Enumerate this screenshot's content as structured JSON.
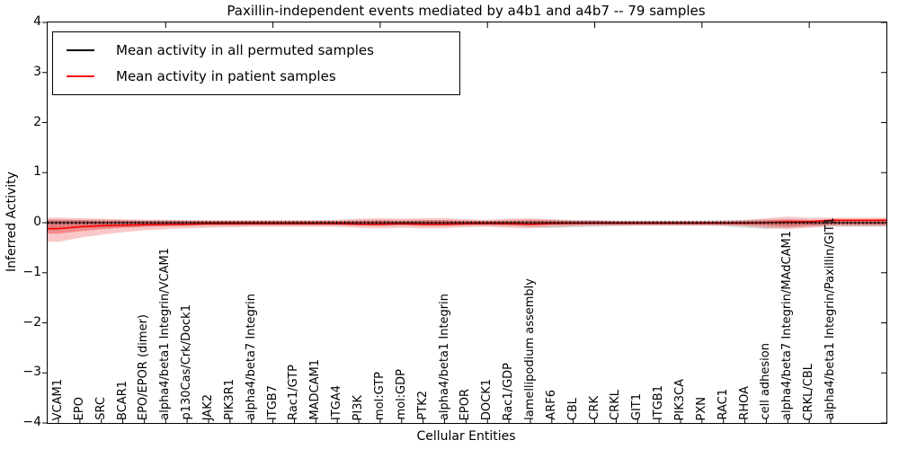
{
  "figure": {
    "title": "Paxillin-independent events mediated by a4b1 and a4b7 -- 79 samples",
    "xlabel": "Cellular Entities",
    "ylabel": "Inferred Activity"
  },
  "legend": {
    "items": [
      {
        "label": "Mean activity in all permuted samples",
        "color": "#000000"
      },
      {
        "label": "Mean activity in patient samples",
        "color": "#ff0000"
      }
    ]
  },
  "axes": {
    "ytick_labels": [
      "4",
      "3",
      "2",
      "1",
      "0",
      "−1",
      "−2",
      "−3",
      "−4"
    ],
    "ytick_values": [
      4,
      3,
      2,
      1,
      0,
      -1,
      -2,
      -3,
      -4
    ]
  },
  "chart_data": {
    "type": "line",
    "title": "Paxillin-independent events mediated by a4b1 and a4b7 -- 79 samples",
    "xlabel": "Cellular Entities",
    "ylabel": "Inferred Activity",
    "ylim": [
      -4,
      4
    ],
    "grid": false,
    "legend_position": "upper left",
    "categories": [
      "VCAM1",
      "EPO",
      "SRC",
      "BCAR1",
      "EPO/EPOR (dimer)",
      "alpha4/beta1 Integrin/VCAM1",
      "p130Cas/Crk/Dock1",
      "JAK2",
      "PIK3R1",
      "alpha4/beta7 Integrin",
      "ITGB7",
      "Rac1/GTP",
      "MADCAM1",
      "ITGA4",
      "PI3K",
      "mol:GTP",
      "mol:GDP",
      "PTK2",
      "alpha4/beta1 Integrin",
      "EPOR",
      "DOCK1",
      "Rac1/GDP",
      "lamellipodium assembly",
      "ARF6",
      "CBL",
      "CRK",
      "CRKL",
      "GIT1",
      "ITGB1",
      "PIK3CA",
      "PXN",
      "RAC1",
      "RHOA",
      "cell adhesion",
      "alpha4/beta7 Integrin/MAdCAM1",
      "CRKL/CBL",
      "alpha4/beta1 Integrin/Paxillin/GIT1"
    ],
    "series": [
      {
        "name": "Mean activity in all permuted samples",
        "color": "#000000",
        "values": [
          0,
          0,
          0,
          0,
          0,
          0,
          0,
          0,
          0,
          0,
          0,
          0,
          0,
          0,
          0,
          0,
          0,
          0,
          0,
          0,
          0,
          0,
          0,
          0,
          0,
          0,
          0,
          0,
          0,
          0,
          0,
          0,
          0,
          0,
          0,
          0,
          0
        ]
      },
      {
        "name": "Mean activity in patient samples",
        "color": "#ff0000",
        "values": [
          -0.12,
          -0.08,
          -0.06,
          -0.05,
          -0.04,
          -0.03,
          -0.03,
          -0.02,
          -0.02,
          -0.02,
          -0.02,
          -0.02,
          -0.02,
          -0.02,
          -0.03,
          -0.03,
          -0.02,
          -0.03,
          -0.03,
          -0.02,
          -0.02,
          -0.02,
          -0.03,
          -0.02,
          -0.01,
          -0.01,
          -0.01,
          -0.01,
          -0.01,
          -0.01,
          -0.01,
          -0.01,
          -0.01,
          0.0,
          0.02,
          0.02,
          0.05
        ]
      }
    ],
    "bands": [
      {
        "name": "permuted-samples-range",
        "color": "rgba(128,128,128,0.28)",
        "upper": [
          0.07,
          0.06,
          0.06,
          0.05,
          0.05,
          0.05,
          0.05,
          0.04,
          0.04,
          0.04,
          0.04,
          0.04,
          0.04,
          0.04,
          0.05,
          0.05,
          0.05,
          0.05,
          0.05,
          0.04,
          0.04,
          0.05,
          0.06,
          0.06,
          0.05,
          0.05,
          0.04,
          0.04,
          0.04,
          0.04,
          0.04,
          0.05,
          0.06,
          0.07,
          0.06,
          0.05,
          0.05
        ],
        "lower": [
          -0.13,
          -0.11,
          -0.1,
          -0.09,
          -0.08,
          -0.07,
          -0.07,
          -0.06,
          -0.06,
          -0.06,
          -0.06,
          -0.06,
          -0.06,
          -0.06,
          -0.06,
          -0.07,
          -0.06,
          -0.07,
          -0.07,
          -0.06,
          -0.06,
          -0.07,
          -0.09,
          -0.11,
          -0.09,
          -0.08,
          -0.07,
          -0.06,
          -0.06,
          -0.06,
          -0.06,
          -0.07,
          -0.1,
          -0.13,
          -0.1,
          -0.08,
          -0.08
        ]
      },
      {
        "name": "patient-samples-range-outer",
        "color": "rgba(230,30,30,0.25)",
        "upper": [
          0.1,
          0.09,
          0.08,
          0.07,
          0.06,
          0.06,
          0.05,
          0.05,
          0.05,
          0.05,
          0.05,
          0.05,
          0.05,
          0.06,
          0.08,
          0.09,
          0.08,
          0.09,
          0.09,
          0.07,
          0.06,
          0.08,
          0.09,
          0.07,
          0.05,
          0.05,
          0.04,
          0.04,
          0.04,
          0.04,
          0.04,
          0.04,
          0.05,
          0.09,
          0.12,
          0.1,
          0.1
        ],
        "lower": [
          -0.38,
          -0.3,
          -0.24,
          -0.19,
          -0.15,
          -0.13,
          -0.11,
          -0.1,
          -0.09,
          -0.08,
          -0.08,
          -0.08,
          -0.08,
          -0.08,
          -0.1,
          -0.11,
          -0.1,
          -0.11,
          -0.11,
          -0.09,
          -0.08,
          -0.1,
          -0.11,
          -0.08,
          -0.07,
          -0.06,
          -0.06,
          -0.06,
          -0.06,
          -0.06,
          -0.06,
          -0.06,
          -0.07,
          -0.1,
          -0.13,
          -0.1,
          -0.07
        ]
      },
      {
        "name": "patient-samples-range-inner",
        "color": "rgba(230,30,30,0.35)",
        "upper": [
          0.05,
          0.05,
          0.04,
          0.04,
          0.03,
          0.03,
          0.03,
          0.03,
          0.03,
          0.03,
          0.03,
          0.03,
          0.03,
          0.03,
          0.04,
          0.05,
          0.04,
          0.05,
          0.05,
          0.04,
          0.03,
          0.04,
          0.05,
          0.04,
          0.03,
          0.03,
          0.02,
          0.02,
          0.02,
          0.02,
          0.02,
          0.02,
          0.03,
          0.05,
          0.07,
          0.06,
          0.06
        ],
        "lower": [
          -0.22,
          -0.17,
          -0.13,
          -0.1,
          -0.08,
          -0.07,
          -0.06,
          -0.05,
          -0.05,
          -0.04,
          -0.04,
          -0.04,
          -0.04,
          -0.04,
          -0.05,
          -0.06,
          -0.05,
          -0.06,
          -0.06,
          -0.05,
          -0.04,
          -0.05,
          -0.06,
          -0.04,
          -0.04,
          -0.03,
          -0.03,
          -0.03,
          -0.03,
          -0.03,
          -0.03,
          -0.03,
          -0.04,
          -0.06,
          -0.08,
          -0.06,
          -0.04
        ]
      }
    ]
  }
}
